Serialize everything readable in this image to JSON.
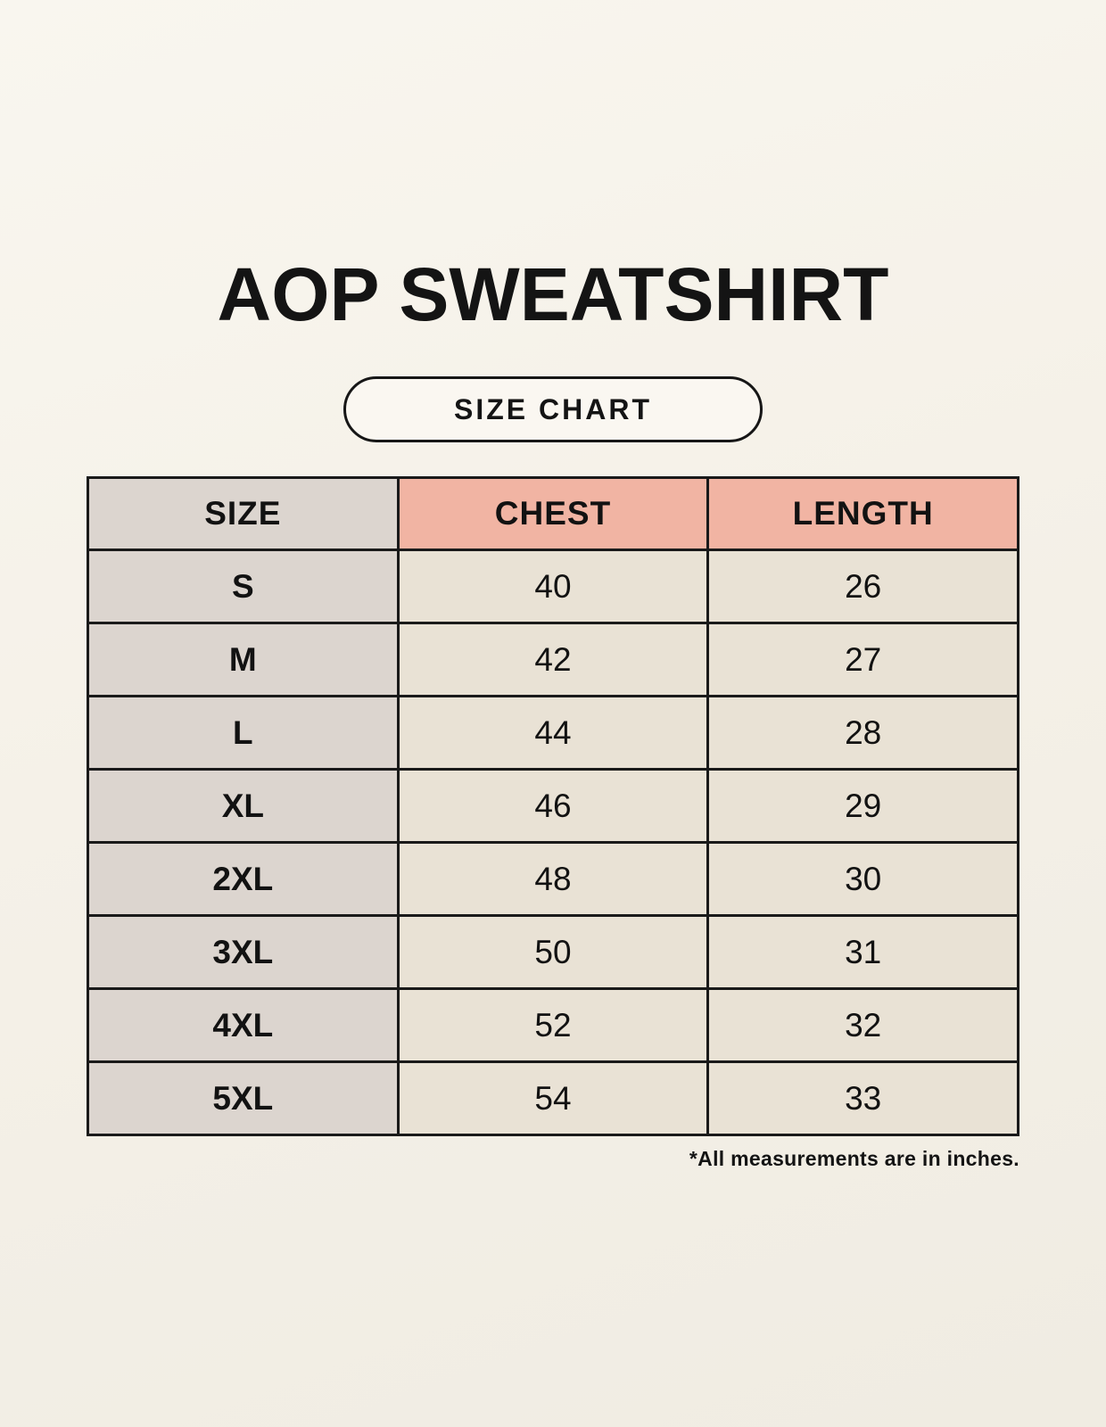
{
  "page": {
    "title": "AOP SWEATSHIRT",
    "badge_label": "SIZE CHART",
    "footnote": "*All measurements are in inches."
  },
  "table": {
    "headers": [
      "SIZE",
      "CHEST",
      "LENGTH"
    ],
    "rows": [
      {
        "size": "S",
        "chest": "40",
        "length": "26"
      },
      {
        "size": "M",
        "chest": "42",
        "length": "27"
      },
      {
        "size": "L",
        "chest": "44",
        "length": "28"
      },
      {
        "size": "XL",
        "chest": "46",
        "length": "29"
      },
      {
        "size": "2XL",
        "chest": "48",
        "length": "30"
      },
      {
        "size": "3XL",
        "chest": "50",
        "length": "31"
      },
      {
        "size": "4XL",
        "chest": "52",
        "length": "32"
      },
      {
        "size": "5XL",
        "chest": "54",
        "length": "33"
      }
    ]
  },
  "colors": {
    "background": "#f5f1e8",
    "size_column": "#dcd5cf",
    "header_accent": "#f1b4a3",
    "data_cell": "#e9e2d5",
    "border": "#1a1a1a",
    "text": "#141414"
  },
  "chart_data": {
    "type": "table",
    "title": "AOP SWEATSHIRT",
    "subtitle": "SIZE CHART",
    "columns": [
      "SIZE",
      "CHEST",
      "LENGTH"
    ],
    "units": "inches",
    "categories": [
      "S",
      "M",
      "L",
      "XL",
      "2XL",
      "3XL",
      "4XL",
      "5XL"
    ],
    "series": [
      {
        "name": "CHEST",
        "values": [
          40,
          42,
          44,
          46,
          48,
          50,
          52,
          54
        ]
      },
      {
        "name": "LENGTH",
        "values": [
          26,
          27,
          28,
          29,
          30,
          31,
          32,
          33
        ]
      }
    ],
    "note": "*All measurements are in inches."
  }
}
